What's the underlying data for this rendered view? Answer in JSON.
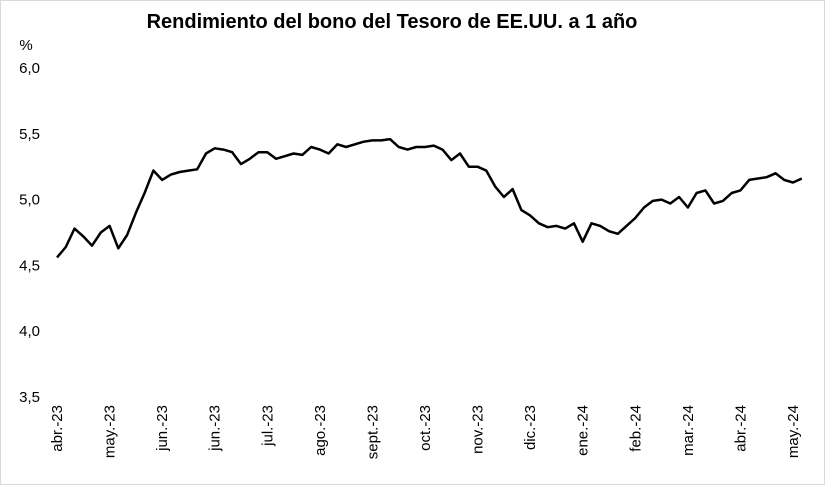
{
  "chart_data": {
    "type": "line",
    "title": "Rendimiento del bono del Tesoro de EE.UU. a 1 año",
    "y_label": "%",
    "categories": [
      "abr.-23",
      null,
      null,
      null,
      null,
      null,
      "may.-23",
      null,
      null,
      null,
      null,
      null,
      "jun.-23",
      null,
      null,
      null,
      null,
      null,
      "jun.-23",
      null,
      null,
      null,
      null,
      null,
      "jul.-23",
      null,
      null,
      null,
      null,
      null,
      "ago.-23",
      null,
      null,
      null,
      null,
      null,
      "sept.-23",
      null,
      null,
      null,
      null,
      null,
      "oct.-23",
      null,
      null,
      null,
      null,
      null,
      "nov.-23",
      null,
      null,
      null,
      null,
      null,
      "dic.-23",
      null,
      null,
      null,
      null,
      null,
      "ene.-24",
      null,
      null,
      null,
      null,
      null,
      "feb.-24",
      null,
      null,
      null,
      null,
      null,
      "mar.-24",
      null,
      null,
      null,
      null,
      null,
      "abr.-24",
      null,
      null,
      null,
      null,
      null,
      "may.-24",
      null
    ],
    "series": [
      {
        "name": "Rendimiento",
        "color": "#000000",
        "values": [
          4.56,
          4.64,
          4.78,
          4.72,
          4.65,
          4.75,
          4.8,
          4.63,
          4.73,
          4.9,
          5.05,
          5.22,
          5.15,
          5.19,
          5.21,
          5.22,
          5.23,
          5.35,
          5.39,
          5.38,
          5.36,
          5.27,
          5.31,
          5.36,
          5.36,
          5.31,
          5.33,
          5.35,
          5.34,
          5.4,
          5.38,
          5.35,
          5.42,
          5.4,
          5.42,
          5.44,
          5.45,
          5.45,
          5.46,
          5.4,
          5.38,
          5.4,
          5.4,
          5.41,
          5.38,
          5.3,
          5.35,
          5.25,
          5.25,
          5.22,
          5.1,
          5.02,
          5.08,
          4.92,
          4.88,
          4.82,
          4.79,
          4.8,
          4.78,
          4.82,
          4.68,
          4.82,
          4.8,
          4.76,
          4.74,
          4.8,
          4.86,
          4.94,
          4.99,
          5.0,
          4.97,
          5.02,
          4.94,
          5.05,
          5.07,
          4.97,
          4.99,
          5.05,
          5.07,
          5.15,
          5.16,
          5.17,
          5.2,
          5.15,
          5.13,
          5.16
        ]
      }
    ],
    "ylim": [
      3.5,
      6.0
    ],
    "yticks": [
      {
        "value": 3.5,
        "label": "3,5"
      },
      {
        "value": 4.0,
        "label": "4,0"
      },
      {
        "value": 4.5,
        "label": "4,5"
      },
      {
        "value": 5.0,
        "label": "5,0"
      },
      {
        "value": 5.5,
        "label": "5,5"
      },
      {
        "value": 6.0,
        "label": "6,0"
      }
    ],
    "grid": false
  }
}
